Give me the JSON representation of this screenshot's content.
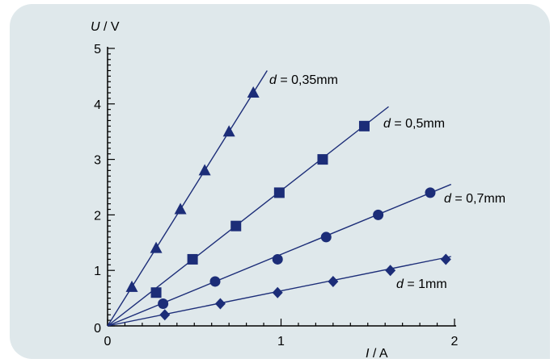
{
  "chart_data": {
    "type": "scatter",
    "xlabel": {
      "symbol": "I",
      "unit": " / A"
    },
    "ylabel": {
      "symbol": "U",
      "unit": " / V"
    },
    "xlim": [
      0,
      2
    ],
    "ylim": [
      0,
      5
    ],
    "x_ticks": [
      0,
      1,
      2
    ],
    "y_ticks": [
      0,
      1,
      2,
      3,
      4,
      5
    ],
    "x_tick_labels": [
      "0",
      "1",
      "2"
    ],
    "y_tick_labels": [
      "0",
      "1",
      "2",
      "3",
      "4",
      "5"
    ],
    "grid": false,
    "colors": {
      "series": "#1c2d78",
      "axis": "#000000",
      "panel": "#dfe8eb"
    },
    "series": [
      {
        "label_symbol": "d",
        "label_value": " = 0,35mm",
        "marker": "triangle",
        "fit_end": [
          0.92,
          4.6
        ],
        "x": [
          0.14,
          0.28,
          0.42,
          0.56,
          0.7,
          0.84
        ],
        "y": [
          0.7,
          1.4,
          2.1,
          2.8,
          3.5,
          4.2
        ]
      },
      {
        "label_symbol": "d",
        "label_value": " = 0,5mm",
        "marker": "square",
        "fit_end": [
          1.62,
          3.95
        ],
        "x": [
          0.28,
          0.49,
          0.74,
          0.99,
          1.24,
          1.48
        ],
        "y": [
          0.6,
          1.2,
          1.8,
          2.4,
          3.0,
          3.6
        ]
      },
      {
        "label_symbol": "d",
        "label_value": " = 0,7mm",
        "marker": "circle",
        "fit_end": [
          1.98,
          2.55
        ],
        "x": [
          0.32,
          0.62,
          0.98,
          1.26,
          1.56,
          1.86
        ],
        "y": [
          0.4,
          0.8,
          1.2,
          1.6,
          2.0,
          2.4
        ]
      },
      {
        "label_symbol": "d",
        "label_value": " = 1mm",
        "marker": "diamond",
        "fit_end": [
          1.98,
          1.25
        ],
        "x": [
          0.33,
          0.65,
          0.98,
          1.3,
          1.63,
          1.95
        ],
        "y": [
          0.2,
          0.4,
          0.6,
          0.8,
          1.0,
          1.2
        ]
      }
    ]
  }
}
